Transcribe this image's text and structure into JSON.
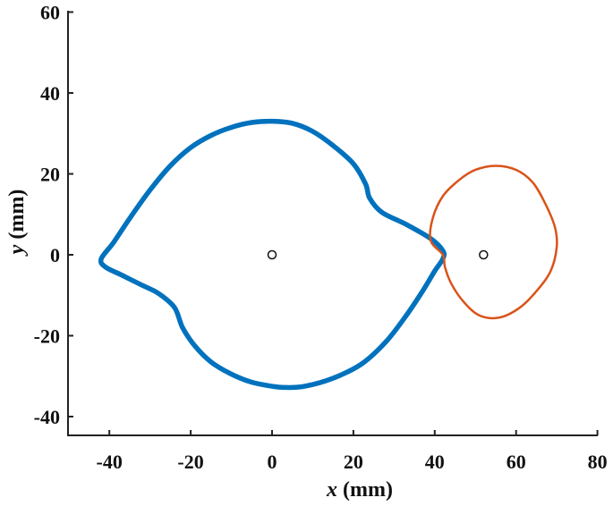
{
  "chart_data": {
    "type": "line",
    "title": "",
    "xlabel": {
      "var": "x",
      "unit": " (mm)"
    },
    "ylabel": {
      "var": "y",
      "unit": " (mm)"
    },
    "xlim": [
      -50,
      80
    ],
    "ylim": [
      -45,
      60
    ],
    "xticks": [
      -40,
      -20,
      0,
      20,
      40,
      60,
      80
    ],
    "yticks": [
      -40,
      -20,
      0,
      20,
      40,
      60
    ],
    "grid": false,
    "series": [
      {
        "color": "#0072BD",
        "closed": true,
        "points": [
          [
            42,
            1
          ],
          [
            39,
            4
          ],
          [
            33,
            7.5
          ],
          [
            27,
            10.5
          ],
          [
            24,
            14
          ],
          [
            23,
            17.5
          ],
          [
            20,
            22.5
          ],
          [
            15,
            27
          ],
          [
            10,
            30.5
          ],
          [
            5,
            32.5
          ],
          [
            0,
            33
          ],
          [
            -5,
            32.7
          ],
          [
            -10,
            31.5
          ],
          [
            -15,
            29.5
          ],
          [
            -20,
            26.5
          ],
          [
            -25,
            22
          ],
          [
            -30,
            16
          ],
          [
            -35,
            9
          ],
          [
            -39,
            3
          ],
          [
            -42,
            -1
          ],
          [
            -41,
            -3
          ],
          [
            -37,
            -5
          ],
          [
            -32,
            -7.5
          ],
          [
            -28,
            -9.5
          ],
          [
            -24,
            -13
          ],
          [
            -22,
            -18
          ],
          [
            -19,
            -22.5
          ],
          [
            -15,
            -26.5
          ],
          [
            -10,
            -29.5
          ],
          [
            -5,
            -31.5
          ],
          [
            0,
            -32.5
          ],
          [
            3,
            -32.8
          ],
          [
            8,
            -32.5
          ],
          [
            15,
            -30.5
          ],
          [
            22,
            -27
          ],
          [
            28,
            -21.5
          ],
          [
            33,
            -15
          ],
          [
            37,
            -9
          ],
          [
            40,
            -4
          ],
          [
            42,
            -1
          ]
        ]
      },
      {
        "color": "#D95319",
        "closed": true,
        "points": [
          [
            42,
            0
          ],
          [
            39,
            3.5
          ],
          [
            39.5,
            9
          ],
          [
            42,
            14.5
          ],
          [
            46,
            18.5
          ],
          [
            50,
            21
          ],
          [
            55,
            22
          ],
          [
            60,
            21
          ],
          [
            64,
            18
          ],
          [
            67,
            13
          ],
          [
            69.5,
            7
          ],
          [
            70,
            2
          ],
          [
            68.5,
            -4
          ],
          [
            65,
            -9
          ],
          [
            61,
            -13
          ],
          [
            56,
            -15.5
          ],
          [
            51,
            -15
          ],
          [
            47,
            -11.5
          ],
          [
            44,
            -7
          ],
          [
            42.5,
            -3
          ],
          [
            42,
            0
          ]
        ]
      }
    ],
    "markers": [
      {
        "x": 0,
        "y": 0,
        "style": "open-circle"
      },
      {
        "x": 52,
        "y": 0,
        "style": "open-circle"
      }
    ]
  }
}
